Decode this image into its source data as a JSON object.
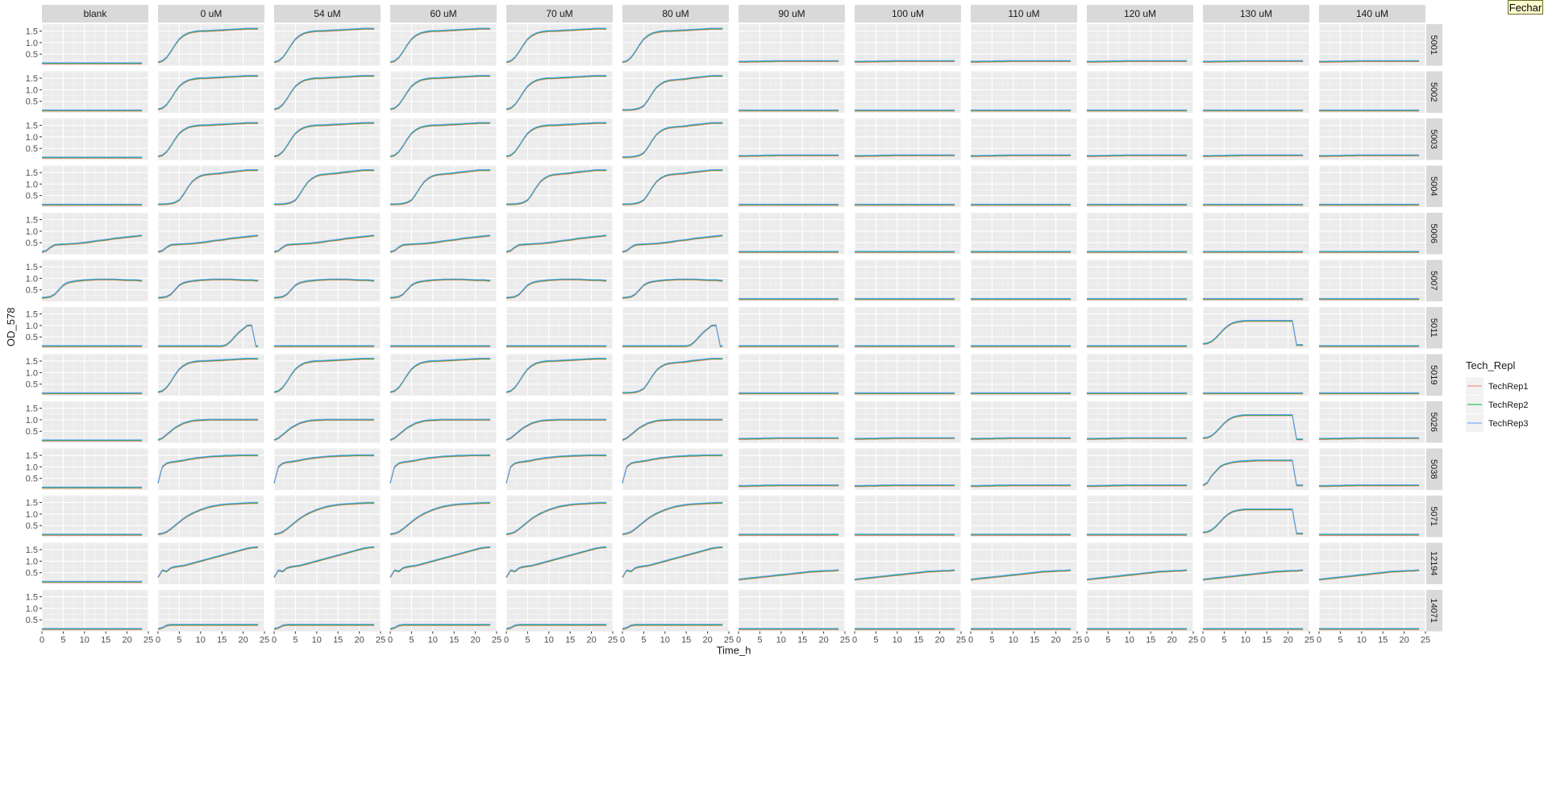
{
  "window": {
    "close_button_label": "Fechar"
  },
  "chart_data": {
    "type": "line",
    "title": "",
    "xlabel": "Time_h",
    "ylabel": "OD_578",
    "facet_columns": [
      "blank",
      "0 uM",
      "54 uM",
      "60 uM",
      "70 uM",
      "80 uM",
      "90 uM",
      "100 uM",
      "110 uM",
      "120 uM",
      "130 uM",
      "140 uM"
    ],
    "facet_rows": [
      "5001",
      "5002",
      "5003",
      "5004",
      "5006",
      "5007",
      "5011",
      "5019",
      "5026",
      "5038",
      "5071",
      "12194",
      "14071"
    ],
    "xlim": [
      0,
      25
    ],
    "ylim": [
      0,
      1.8
    ],
    "x_ticks": [
      0,
      5,
      10,
      15,
      20,
      25
    ],
    "y_ticks": [
      0.5,
      1.0,
      1.5
    ],
    "y_tick_labels": [
      "0.5",
      "1.0",
      "1.5"
    ],
    "grid": true,
    "legend": {
      "title": "Tech_Repl",
      "position": "right",
      "entries": [
        "TechRep1",
        "TechRep2",
        "TechRep3"
      ]
    },
    "series_colors": {
      "TechRep1": "#F8766D",
      "TechRep2": "#00BA38",
      "TechRep3": "#619CFF"
    },
    "x": [
      0,
      1,
      2,
      3,
      4,
      5,
      6,
      7,
      8,
      9,
      10,
      11,
      12,
      13,
      14,
      15,
      16,
      17,
      18,
      19,
      20,
      21,
      22,
      23,
      23.5
    ],
    "profiles": {
      "flat": [
        0.1,
        0.1,
        0.1,
        0.1,
        0.1,
        0.1,
        0.1,
        0.1,
        0.1,
        0.1,
        0.1,
        0.1,
        0.1,
        0.1,
        0.1,
        0.1,
        0.1,
        0.1,
        0.1,
        0.1,
        0.1,
        0.1,
        0.1,
        0.1,
        0.1
      ],
      "low": [
        0.17,
        0.17,
        0.17,
        0.18,
        0.18,
        0.18,
        0.19,
        0.19,
        0.19,
        0.2,
        0.2,
        0.2,
        0.2,
        0.2,
        0.2,
        0.2,
        0.2,
        0.2,
        0.2,
        0.2,
        0.2,
        0.2,
        0.2,
        0.2,
        0.2
      ],
      "growth": [
        0.15,
        0.2,
        0.35,
        0.6,
        0.9,
        1.15,
        1.3,
        1.4,
        1.45,
        1.48,
        1.5,
        1.5,
        1.51,
        1.52,
        1.53,
        1.54,
        1.55,
        1.56,
        1.57,
        1.58,
        1.59,
        1.6,
        1.6,
        1.6,
        1.6
      ],
      "delay": [
        0.12,
        0.12,
        0.13,
        0.15,
        0.2,
        0.3,
        0.55,
        0.85,
        1.1,
        1.25,
        1.35,
        1.4,
        1.42,
        1.44,
        1.45,
        1.47,
        1.5,
        1.52,
        1.54,
        1.56,
        1.58,
        1.6,
        1.6,
        1.6,
        1.6
      ],
      "mid": [
        0.1,
        0.15,
        0.3,
        0.4,
        0.42,
        0.43,
        0.44,
        0.45,
        0.46,
        0.48,
        0.5,
        0.52,
        0.55,
        0.58,
        0.6,
        0.62,
        0.65,
        0.68,
        0.7,
        0.72,
        0.74,
        0.76,
        0.78,
        0.8,
        0.8
      ],
      "plateau": [
        0.15,
        0.17,
        0.2,
        0.3,
        0.5,
        0.7,
        0.8,
        0.85,
        0.88,
        0.9,
        0.92,
        0.93,
        0.94,
        0.95,
        0.95,
        0.95,
        0.95,
        0.95,
        0.94,
        0.93,
        0.92,
        0.92,
        0.92,
        0.9,
        0.9
      ],
      "late": [
        0.1,
        0.1,
        0.1,
        0.1,
        0.1,
        0.1,
        0.1,
        0.1,
        0.1,
        0.1,
        0.1,
        0.1,
        0.1,
        0.1,
        0.1,
        0.1,
        0.15,
        0.3,
        0.5,
        0.7,
        0.85,
        1.0,
        1.0,
        0.1,
        0.1
      ],
      "step1": [
        0.12,
        0.2,
        0.35,
        0.5,
        0.65,
        0.75,
        0.85,
        0.9,
        0.95,
        0.97,
        0.98,
        0.99,
        1.0,
        1.0,
        1.0,
        1.0,
        1.0,
        1.0,
        1.0,
        1.0,
        1.0,
        1.0,
        1.0,
        1.0,
        1.0
      ],
      "fast": [
        0.3,
        1.0,
        1.15,
        1.2,
        1.22,
        1.25,
        1.28,
        1.32,
        1.35,
        1.38,
        1.4,
        1.42,
        1.44,
        1.45,
        1.46,
        1.47,
        1.48,
        1.48,
        1.49,
        1.5,
        1.5,
        1.5,
        1.5,
        1.5,
        1.5
      ],
      "smooth": [
        0.12,
        0.15,
        0.22,
        0.35,
        0.5,
        0.65,
        0.8,
        0.92,
        1.02,
        1.1,
        1.18,
        1.24,
        1.3,
        1.34,
        1.37,
        1.4,
        1.42,
        1.43,
        1.44,
        1.45,
        1.46,
        1.47,
        1.48,
        1.48,
        1.48
      ],
      "wavy": [
        0.3,
        0.6,
        0.55,
        0.7,
        0.75,
        0.78,
        0.8,
        0.85,
        0.9,
        0.95,
        1.0,
        1.05,
        1.1,
        1.15,
        1.2,
        1.25,
        1.3,
        1.35,
        1.4,
        1.45,
        1.5,
        1.55,
        1.58,
        1.6,
        1.6
      ],
      "small": [
        0.1,
        0.15,
        0.25,
        0.28,
        0.28,
        0.28,
        0.28,
        0.28,
        0.28,
        0.28,
        0.28,
        0.28,
        0.28,
        0.28,
        0.28,
        0.28,
        0.28,
        0.28,
        0.28,
        0.28,
        0.28,
        0.28,
        0.28,
        0.28,
        0.28
      ],
      "slope": [
        0.2,
        0.22,
        0.24,
        0.26,
        0.28,
        0.3,
        0.32,
        0.34,
        0.36,
        0.38,
        0.4,
        0.42,
        0.44,
        0.46,
        0.48,
        0.5,
        0.52,
        0.54,
        0.55,
        0.56,
        0.57,
        0.58,
        0.58,
        0.6,
        0.6
      ],
      "rise13": [
        0.2,
        0.22,
        0.3,
        0.45,
        0.65,
        0.85,
        1.0,
        1.1,
        1.15,
        1.18,
        1.2,
        1.2,
        1.2,
        1.2,
        1.2,
        1.2,
        1.2,
        1.2,
        1.2,
        1.2,
        1.2,
        1.2,
        0.15,
        0.15,
        0.15
      ],
      "rise13b": [
        0.2,
        0.3,
        0.6,
        0.8,
        1.0,
        1.1,
        1.15,
        1.2,
        1.22,
        1.24,
        1.25,
        1.26,
        1.27,
        1.28,
        1.28,
        1.28,
        1.28,
        1.28,
        1.28,
        1.28,
        1.28,
        1.28,
        0.2,
        0.2,
        0.2
      ]
    },
    "grid_profiles": [
      [
        "flat",
        "growth",
        "growth",
        "growth",
        "growth",
        "growth",
        "low",
        "low",
        "low",
        "low",
        "low",
        "low"
      ],
      [
        "flat",
        "growth",
        "growth",
        "growth",
        "growth",
        "delay",
        "flat",
        "flat",
        "flat",
        "flat",
        "flat",
        "flat"
      ],
      [
        "flat",
        "growth",
        "growth",
        "growth",
        "growth",
        "delay",
        "low",
        "low",
        "low",
        "low",
        "low",
        "low"
      ],
      [
        "flat",
        "delay",
        "delay",
        "delay",
        "delay",
        "delay",
        "flat",
        "flat",
        "flat",
        "flat",
        "flat",
        "flat"
      ],
      [
        "mid",
        "mid",
        "mid",
        "mid",
        "mid",
        "mid",
        "flat",
        "flat",
        "flat",
        "flat",
        "flat",
        "flat"
      ],
      [
        "plateau",
        "plateau",
        "plateau",
        "plateau",
        "plateau",
        "plateau",
        "flat",
        "flat",
        "flat",
        "flat",
        "flat",
        "flat"
      ],
      [
        "flat",
        "late",
        "flat",
        "flat",
        "flat",
        "late",
        "flat",
        "flat",
        "flat",
        "flat",
        "rise13",
        "flat"
      ],
      [
        "flat",
        "growth",
        "growth",
        "growth",
        "growth",
        "delay",
        "flat",
        "flat",
        "flat",
        "flat",
        "flat",
        "flat"
      ],
      [
        "flat",
        "step1",
        "step1",
        "step1",
        "step1",
        "step1",
        "low",
        "low",
        "low",
        "low",
        "rise13",
        "low"
      ],
      [
        "flat",
        "fast",
        "fast",
        "fast",
        "fast",
        "fast",
        "low",
        "low",
        "low",
        "low",
        "rise13b",
        "low"
      ],
      [
        "flat",
        "smooth",
        "smooth",
        "smooth",
        "smooth",
        "smooth",
        "flat",
        "flat",
        "flat",
        "flat",
        "rise13",
        "flat"
      ],
      [
        "flat",
        "wavy",
        "wavy",
        "wavy",
        "wavy",
        "wavy",
        "slope",
        "slope",
        "slope",
        "slope",
        "slope",
        "slope"
      ],
      [
        "flat",
        "small",
        "small",
        "small",
        "small",
        "small",
        "flat",
        "flat",
        "flat",
        "flat",
        "flat",
        "flat"
      ]
    ]
  }
}
